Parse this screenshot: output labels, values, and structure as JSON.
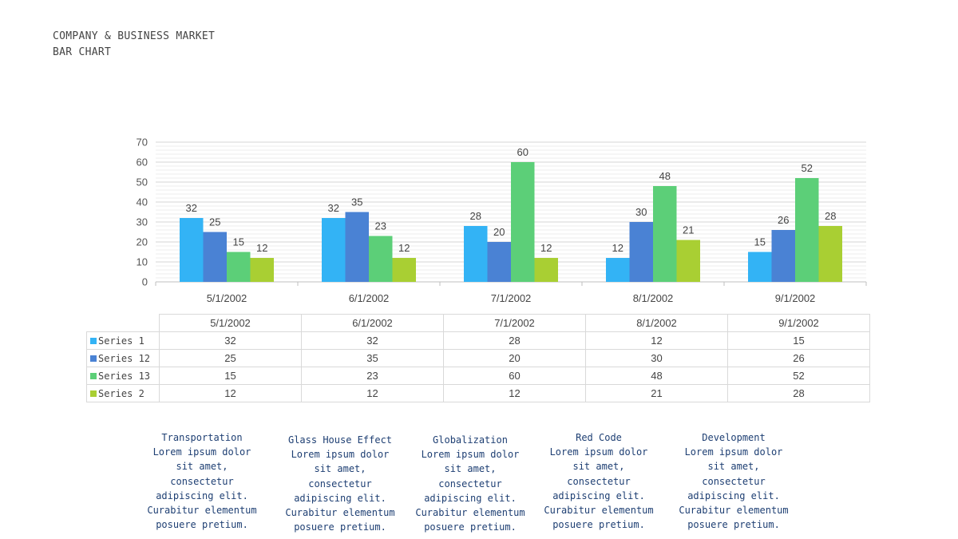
{
  "header": {
    "line1": "COMPANY & BUSINESS MARKET",
    "line2": "BAR CHART"
  },
  "chart_data": {
    "type": "bar",
    "categories": [
      "5/1/2002",
      "6/1/2002",
      "7/1/2002",
      "8/1/2002",
      "9/1/2002"
    ],
    "series": [
      {
        "name": "Series 1",
        "color": "#33b3f5",
        "values": [
          32,
          32,
          28,
          12,
          15
        ]
      },
      {
        "name": "Series 12",
        "color": "#4a82d4",
        "values": [
          25,
          35,
          20,
          30,
          26
        ]
      },
      {
        "name": "Series 13",
        "color": "#5ccf78",
        "values": [
          15,
          23,
          60,
          48,
          52
        ]
      },
      {
        "name": "Series 2",
        "color": "#a9cf33",
        "values": [
          12,
          12,
          12,
          21,
          28
        ]
      }
    ],
    "ylim": [
      0,
      70
    ],
    "yticks": [
      0,
      10,
      20,
      30,
      40,
      50,
      60,
      70
    ],
    "title": "",
    "xlabel": "",
    "ylabel": "",
    "grid": true,
    "legend": "data-table"
  },
  "notes": [
    {
      "lines": [
        "Transportation",
        "Lorem ipsum dolor",
        "sit amet,",
        "consectetur",
        "adipiscing elit.",
        "Curabitur elementum",
        "posuere pretium."
      ]
    },
    {
      "lines": [
        "Glass House Effect",
        "Lorem ipsum dolor",
        "sit amet,",
        "consectetur",
        "adipiscing elit.",
        "Curabitur elementum",
        "posuere pretium."
      ]
    },
    {
      "lines": [
        "Globalization",
        "Lorem ipsum dolor",
        "sit amet,",
        "consectetur",
        "adipiscing elit.",
        "Curabitur elementum",
        "posuere pretium."
      ]
    },
    {
      "lines": [
        "Red Code",
        "Lorem ipsum dolor",
        "sit amet,",
        "consectetur",
        "adipiscing elit.",
        "Curabitur elementum",
        "posuere pretium."
      ]
    },
    {
      "lines": [
        "Development",
        "Lorem ipsum dolor",
        "sit amet,",
        "consectetur",
        "adipiscing elit.",
        "Curabitur elementum",
        "posuere pretium."
      ]
    }
  ]
}
